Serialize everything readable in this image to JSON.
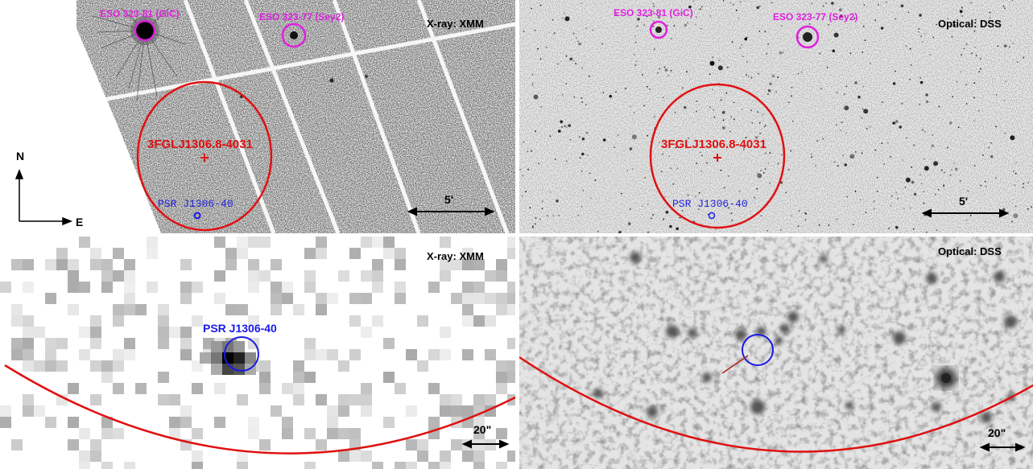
{
  "panels": {
    "top_left": {
      "band": "X-ray: XMM",
      "source_gic": "ESO 323-81 (GiC)",
      "source_sey2": "ESO 323-77 (Sey2)",
      "fermi_source": "3FGLJ1306.8-4031",
      "pulsar": "PSR J1306-40",
      "scale": "5'",
      "compass_n": "N",
      "compass_e": "E"
    },
    "top_right": {
      "band": "Optical: DSS",
      "source_gic": "ESO 323-81 (GiC)",
      "source_sey2": "ESO 323-77 (Sey2)",
      "fermi_source": "3FGLJ1306.8-4031",
      "pulsar": "PSR J1306-40",
      "scale": "5'"
    },
    "bottom_left": {
      "band": "X-ray: XMM",
      "pulsar": "PSR J1306-40",
      "scale": "20\""
    },
    "bottom_right": {
      "band": "Optical: DSS",
      "scale": "20\""
    }
  },
  "colors": {
    "galaxy_marker": "#e020e0",
    "fermi_ellipse": "#e01010",
    "pulsar_marker": "#1a1ae8",
    "background": "#ffffff"
  }
}
